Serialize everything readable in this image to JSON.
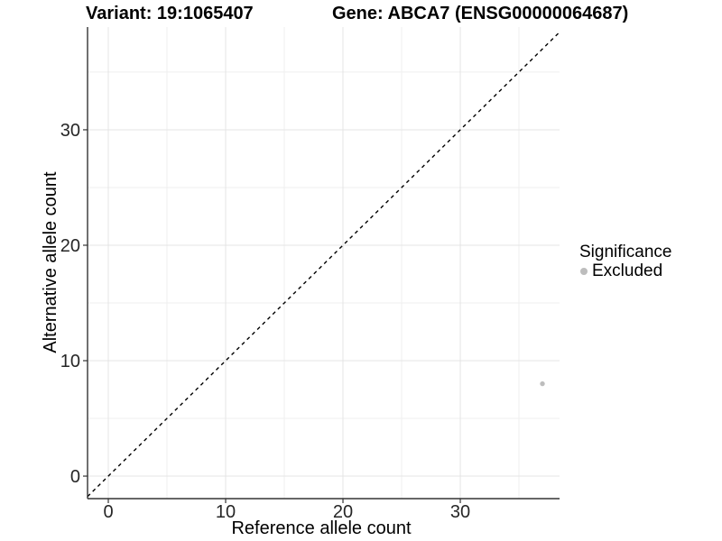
{
  "chart_data": {
    "type": "scatter",
    "title_left": "Variant: 19:1065407",
    "title_right": "Gene: ABCA7 (ENSG00000064687)",
    "xlabel": "Reference allele count",
    "ylabel": "Alternative allele count",
    "xlim": [
      -1.77,
      38.46
    ],
    "ylim": [
      -1.95,
      38.9
    ],
    "x_ticks": [
      0,
      10,
      20,
      30
    ],
    "y_ticks": [
      0,
      10,
      20,
      30
    ],
    "x_minor": [
      5,
      15,
      25,
      35
    ],
    "y_minor": [
      5,
      15,
      25,
      35
    ],
    "grid": true,
    "points": [
      {
        "x": 37,
        "y": 8,
        "significance": "Excluded"
      }
    ],
    "abline": {
      "slope": 1,
      "intercept": 0,
      "style": "dashed",
      "color": "#000000"
    },
    "legend": {
      "position": "right",
      "title": "Significance",
      "entries": [
        {
          "label": "Excluded",
          "color": "#bdbdbd"
        }
      ]
    },
    "colors": {
      "point": "#bdbdbd",
      "grid_major": "#e4e4e4",
      "grid_minor": "#efefef",
      "axis_line": "#333333",
      "tick_text": "#262626"
    }
  }
}
